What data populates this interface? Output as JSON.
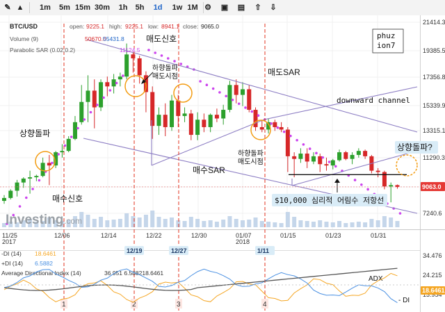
{
  "toolbar": {
    "items": [
      {
        "label": "",
        "icon": "pencil-icon"
      },
      {
        "label": "",
        "icon": "chart-type-icon"
      },
      {
        "label": "1m"
      },
      {
        "label": "5m"
      },
      {
        "label": "15m"
      },
      {
        "label": "30m"
      },
      {
        "label": "1h"
      },
      {
        "label": "5h"
      },
      {
        "label": "1d",
        "active": true
      },
      {
        "label": "1w"
      },
      {
        "label": "1M"
      },
      {
        "label": "",
        "icon": "gear-icon"
      },
      {
        "label": "",
        "icon": "camera-icon"
      },
      {
        "label": "",
        "icon": "save-icon"
      },
      {
        "label": "",
        "icon": "cloud-upload-icon"
      },
      {
        "label": "",
        "icon": "cloud-download-icon"
      }
    ]
  },
  "legend": {
    "symbol": "BTC/USD",
    "open_label": "open:",
    "open": "9225.1",
    "high_label": "high:",
    "high": "9225.1",
    "low_label": "low:",
    "low": "8941.1",
    "close_label": "close:",
    "close": "9065.0",
    "volume_label": "Volume (9)",
    "volume_a": "50670.0",
    "volume_b": "55431.8",
    "sar_label": "Parabolic SAR (0.02,0.2)",
    "sar_value": "11124.5"
  },
  "annotations": {
    "author": "phuz\nion7",
    "sell_signal": "매도신호",
    "buy_signal": "매수신호",
    "sell_sar": "매도SAR",
    "buy_sar": "매수SAR",
    "breakdown_sell": "하향돌파\n매도시점",
    "breakdown_sell_2": "하향돌파\n매도시점",
    "breakout_up": "상향돌파",
    "breakout_question": "상향돌파?",
    "downward_channel": "downward channel",
    "resistance": "$10,000 심리적 어림수 저항선",
    "adx": "ADX",
    "minus_di": "- DI",
    "plus_di": "+DI"
  },
  "markers": [
    {
      "num": "1",
      "date": ""
    },
    {
      "num": "2",
      "date": "12/19"
    },
    {
      "num": "3",
      "date": "12/27"
    },
    {
      "num": "4",
      "date": "1/11"
    }
  ],
  "branding": {
    "logo": "Investing",
    "logo_suffix": ".com"
  },
  "price_tag": "9063.0",
  "adx_legend": {
    "minus_label": "-DI (14)",
    "minus_value": "18.6461",
    "plus_label": "+DI (14)",
    "plus_value": "6.5882",
    "adx_label": "Average Directional Index (14)",
    "values": "36.951 6.588218.6461"
  },
  "colors": {
    "up": "#2ca02c",
    "down": "#d62728",
    "sar": "#cc44ee",
    "channel": "#8d7ec4",
    "signal": "#e0301e",
    "circle": "#f39c12",
    "minus_di": "#f5a623",
    "plus_di": "#4a90e2",
    "adx": "#555555",
    "price_tag": "#e53935",
    "resistance_box": "#d9ecf7"
  },
  "chart_data": {
    "type": "candlestick",
    "symbol": "BTC/USD",
    "interval": "1d",
    "x_ticks": [
      "11/25\n2017",
      "12/06",
      "12/14",
      "12/22",
      "12/30",
      "01/07\n2018",
      "01/15",
      "01/23",
      "01/31"
    ],
    "y_ticks": [
      "21414.3",
      "19385.5",
      "17356.8",
      "15339.9",
      "13315.1",
      "11290.3",
      "9063.0",
      "7240.6"
    ],
    "ylim": [
      6500,
      21500
    ],
    "resistance": 10000,
    "candles": [
      {
        "o": 8100,
        "h": 8500,
        "l": 7900,
        "c": 8300
      },
      {
        "o": 8300,
        "h": 8900,
        "l": 8200,
        "c": 8800
      },
      {
        "o": 8800,
        "h": 9600,
        "l": 8400,
        "c": 9400
      },
      {
        "o": 9400,
        "h": 9800,
        "l": 9000,
        "c": 9700
      },
      {
        "o": 9700,
        "h": 10300,
        "l": 8600,
        "c": 9800
      },
      {
        "o": 9800,
        "h": 10000,
        "l": 9500,
        "c": 9900
      },
      {
        "o": 9900,
        "h": 11300,
        "l": 9800,
        "c": 10900
      },
      {
        "o": 10900,
        "h": 11500,
        "l": 9200,
        "c": 10700
      },
      {
        "o": 10700,
        "h": 11800,
        "l": 10500,
        "c": 11700
      },
      {
        "o": 11700,
        "h": 12300,
        "l": 11300,
        "c": 11800
      },
      {
        "o": 11800,
        "h": 12900,
        "l": 11700,
        "c": 12700
      },
      {
        "o": 12700,
        "h": 14500,
        "l": 12600,
        "c": 14000
      },
      {
        "o": 14000,
        "h": 16800,
        "l": 13800,
        "c": 15600
      },
      {
        "o": 15600,
        "h": 17500,
        "l": 14000,
        "c": 16400
      },
      {
        "o": 16400,
        "h": 17200,
        "l": 13500,
        "c": 15200
      },
      {
        "o": 15200,
        "h": 17200,
        "l": 14900,
        "c": 17000
      },
      {
        "o": 17000,
        "h": 17400,
        "l": 16000,
        "c": 16700
      },
      {
        "o": 16700,
        "h": 17600,
        "l": 16200,
        "c": 17200
      },
      {
        "o": 17200,
        "h": 17700,
        "l": 16700,
        "c": 17400
      },
      {
        "o": 17400,
        "h": 19900,
        "l": 17200,
        "c": 19100
      },
      {
        "o": 19100,
        "h": 19300,
        "l": 17700,
        "c": 18800
      },
      {
        "o": 18800,
        "h": 19000,
        "l": 16900,
        "c": 17500
      },
      {
        "o": 17500,
        "h": 17800,
        "l": 14800,
        "c": 16300
      },
      {
        "o": 16300,
        "h": 16700,
        "l": 12700,
        "c": 13700
      },
      {
        "o": 13700,
        "h": 15200,
        "l": 13000,
        "c": 14600
      },
      {
        "o": 14600,
        "h": 15500,
        "l": 12900,
        "c": 13600
      },
      {
        "o": 13600,
        "h": 16100,
        "l": 13300,
        "c": 15700
      },
      {
        "o": 15700,
        "h": 16100,
        "l": 13600,
        "c": 14500
      },
      {
        "o": 14500,
        "h": 15200,
        "l": 14000,
        "c": 14700
      },
      {
        "o": 14700,
        "h": 15000,
        "l": 12600,
        "c": 13000
      },
      {
        "o": 13000,
        "h": 14800,
        "l": 12600,
        "c": 14200
      },
      {
        "o": 14200,
        "h": 14700,
        "l": 13200,
        "c": 13600
      },
      {
        "o": 13600,
        "h": 14700,
        "l": 13200,
        "c": 14600
      },
      {
        "o": 14600,
        "h": 15100,
        "l": 14000,
        "c": 14300
      },
      {
        "o": 14300,
        "h": 15400,
        "l": 13800,
        "c": 15000
      },
      {
        "o": 15000,
        "h": 17100,
        "l": 14800,
        "c": 16800
      },
      {
        "o": 16800,
        "h": 17200,
        "l": 15500,
        "c": 16100
      },
      {
        "o": 16100,
        "h": 17000,
        "l": 15300,
        "c": 16500
      },
      {
        "o": 16500,
        "h": 16800,
        "l": 14800,
        "c": 15000
      },
      {
        "o": 15000,
        "h": 15200,
        "l": 13300,
        "c": 13600
      },
      {
        "o": 13600,
        "h": 14200,
        "l": 13200,
        "c": 13400
      },
      {
        "o": 13400,
        "h": 14300,
        "l": 13100,
        "c": 14000
      },
      {
        "o": 14000,
        "h": 14200,
        "l": 13300,
        "c": 13600
      },
      {
        "o": 13600,
        "h": 14000,
        "l": 13200,
        "c": 13400
      },
      {
        "o": 13400,
        "h": 13600,
        "l": 10200,
        "c": 11400
      },
      {
        "o": 11400,
        "h": 11700,
        "l": 9800,
        "c": 11200
      },
      {
        "o": 11200,
        "h": 12000,
        "l": 10900,
        "c": 11600
      },
      {
        "o": 11600,
        "h": 12000,
        "l": 10500,
        "c": 11000
      },
      {
        "o": 11000,
        "h": 11700,
        "l": 10800,
        "c": 11400
      },
      {
        "o": 11400,
        "h": 11600,
        "l": 10200,
        "c": 10800
      },
      {
        "o": 10800,
        "h": 11300,
        "l": 10300,
        "c": 10700
      },
      {
        "o": 10700,
        "h": 11200,
        "l": 10400,
        "c": 11100
      },
      {
        "o": 11100,
        "h": 11900,
        "l": 11000,
        "c": 11700
      },
      {
        "o": 11700,
        "h": 11800,
        "l": 11100,
        "c": 11200
      },
      {
        "o": 11200,
        "h": 11700,
        "l": 10800,
        "c": 11500
      },
      {
        "o": 11500,
        "h": 12000,
        "l": 11300,
        "c": 11800
      },
      {
        "o": 11800,
        "h": 11900,
        "l": 11200,
        "c": 11400
      },
      {
        "o": 11400,
        "h": 11500,
        "l": 10100,
        "c": 10300
      },
      {
        "o": 10300,
        "h": 10500,
        "l": 9800,
        "c": 10200
      },
      {
        "o": 10200,
        "h": 10300,
        "l": 8900,
        "c": 9100
      },
      {
        "o": 9100,
        "h": 9400,
        "l": 8000,
        "c": 9200
      },
      {
        "o": 9200,
        "h": 9250,
        "l": 8940,
        "c": 9065
      }
    ]
  }
}
